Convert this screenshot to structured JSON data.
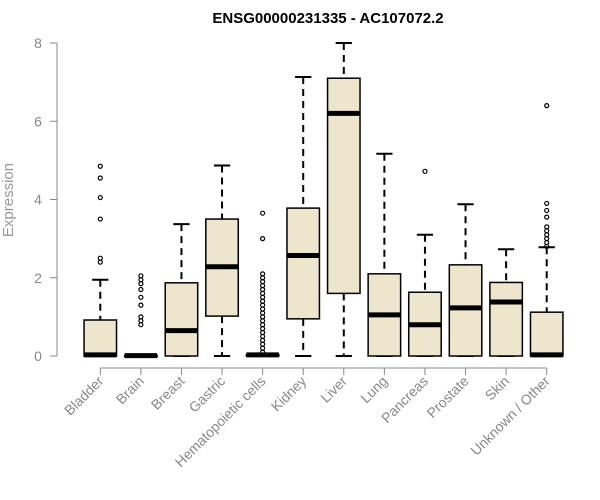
{
  "chart_data": {
    "type": "box",
    "title": "ENSG00000231335 - AC107072.2",
    "xlabel": "",
    "ylabel": "Expression",
    "ylim": [
      0,
      8
    ],
    "yticks": [
      0,
      2,
      4,
      6,
      8
    ],
    "box_fill": "#ede6cd",
    "categories": [
      "Bladder",
      "Brain",
      "Breast",
      "Gastric",
      "Hematopoietic cells",
      "Kidney",
      "Liver",
      "Lung",
      "Pancreas",
      "Prostate",
      "Skin",
      "Unknown / Other"
    ],
    "series": [
      {
        "category": "Bladder",
        "min": 0,
        "q1": 0,
        "median": 0.03,
        "q3": 0.92,
        "max": 1.95,
        "outliers": [
          2.4,
          2.5,
          3.5,
          4.05,
          4.55,
          4.85
        ]
      },
      {
        "category": "Brain",
        "min": 0,
        "q1": 0,
        "median": 0.01,
        "q3": 0.01,
        "max": 0.02,
        "outliers": [
          0.8,
          0.9,
          1.0,
          1.3,
          1.5,
          1.7,
          1.85,
          1.95,
          2.05
        ]
      },
      {
        "category": "Breast",
        "min": 0,
        "q1": 0,
        "median": 0.65,
        "q3": 1.87,
        "max": 3.37,
        "outliers": []
      },
      {
        "category": "Gastric",
        "min": 0,
        "q1": 1.02,
        "median": 2.28,
        "q3": 3.5,
        "max": 4.87,
        "outliers": []
      },
      {
        "category": "Hematopoietic cells",
        "min": 0,
        "q1": 0,
        "median": 0.03,
        "q3": 0.03,
        "max": 0.05,
        "outliers": [
          0.1,
          0.2,
          0.3,
          0.4,
          0.5,
          0.6,
          0.7,
          0.8,
          0.9,
          1.0,
          1.1,
          1.2,
          1.3,
          1.4,
          1.5,
          1.6,
          1.7,
          1.8,
          1.9,
          2.0,
          2.1,
          3.0,
          3.65
        ]
      },
      {
        "category": "Kidney",
        "min": 0,
        "q1": 0.95,
        "median": 2.57,
        "q3": 3.78,
        "max": 7.13,
        "outliers": []
      },
      {
        "category": "Liver",
        "min": 0,
        "q1": 1.6,
        "median": 6.2,
        "q3": 7.1,
        "max": 8.0,
        "outliers": []
      },
      {
        "category": "Lung",
        "min": 0,
        "q1": 0,
        "median": 1.05,
        "q3": 2.1,
        "max": 5.17,
        "outliers": []
      },
      {
        "category": "Pancreas",
        "min": 0,
        "q1": 0,
        "median": 0.8,
        "q3": 1.63,
        "max": 3.1,
        "outliers": [
          4.72
        ]
      },
      {
        "category": "Prostate",
        "min": 0,
        "q1": 0,
        "median": 1.23,
        "q3": 2.33,
        "max": 3.88,
        "outliers": []
      },
      {
        "category": "Skin",
        "min": 0,
        "q1": 0,
        "median": 1.38,
        "q3": 1.88,
        "max": 2.73,
        "outliers": []
      },
      {
        "category": "Unknown / Other",
        "min": 0,
        "q1": 0,
        "median": 0.03,
        "q3": 1.12,
        "max": 2.78,
        "outliers": [
          2.8,
          2.9,
          3.0,
          3.1,
          3.2,
          3.3,
          3.55,
          3.72,
          3.9,
          6.4
        ]
      }
    ]
  }
}
